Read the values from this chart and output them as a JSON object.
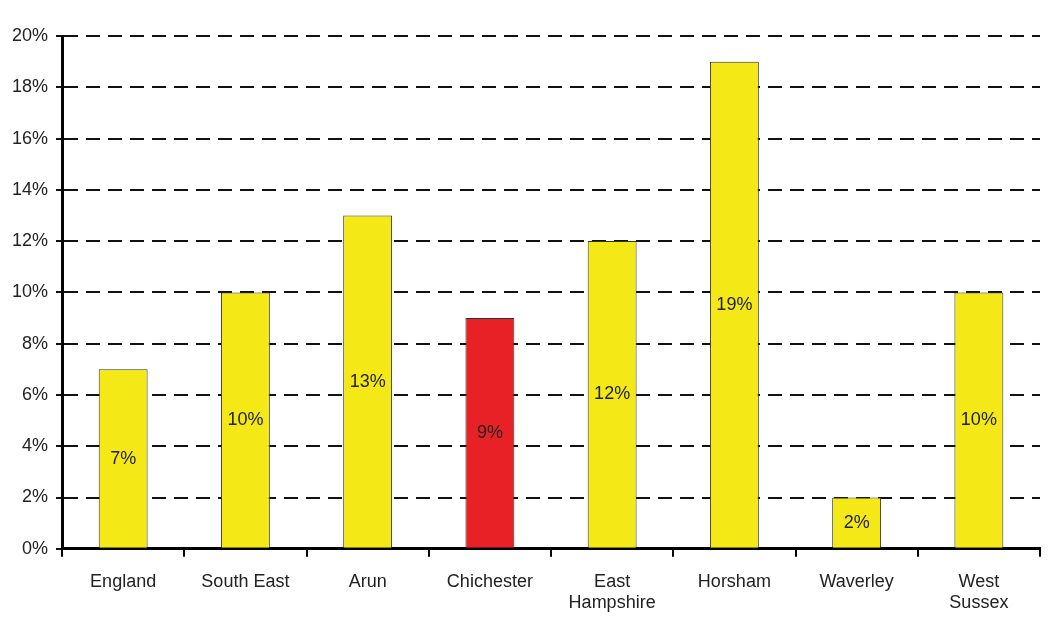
{
  "chart_data": {
    "type": "bar",
    "categories": [
      "England",
      "South East",
      "Arun",
      "Chichester",
      "East Hampshire",
      "Horsham",
      "Waverley",
      "West Sussex"
    ],
    "values": [
      7,
      10,
      13,
      9,
      12,
      19,
      2,
      10
    ],
    "colors": [
      "#f4e916",
      "#f4e916",
      "#f4e916",
      "#e82127",
      "#f4e916",
      "#f4e916",
      "#f4e916",
      "#f4e916"
    ],
    "value_labels": [
      "7%",
      "10%",
      "13%",
      "9%",
      "12%",
      "19%",
      "2%",
      "10%"
    ],
    "ylim": [
      0,
      20
    ],
    "yticks": [
      {
        "value": 0,
        "label": "0%"
      },
      {
        "value": 2,
        "label": "2%"
      },
      {
        "value": 4,
        "label": "4%"
      },
      {
        "value": 6,
        "label": "6%"
      },
      {
        "value": 8,
        "label": "8%"
      },
      {
        "value": 10,
        "label": "10%"
      },
      {
        "value": 12,
        "label": "12%"
      },
      {
        "value": 14,
        "label": "14%"
      },
      {
        "value": 16,
        "label": "16%"
      },
      {
        "value": 18,
        "label": "18%"
      },
      {
        "value": 20,
        "label": "20%"
      }
    ],
    "grid": "y"
  }
}
